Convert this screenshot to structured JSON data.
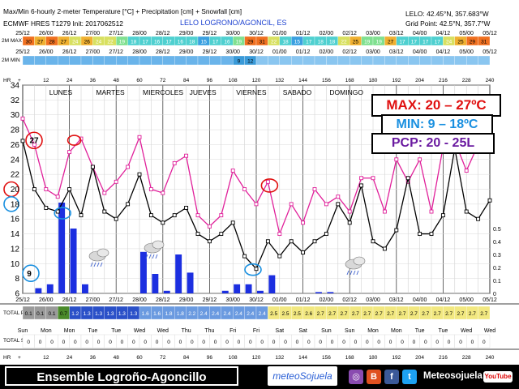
{
  "header": {
    "title": "Max/Min 6-hourly 2-meter Temperature [°C] + Precipitation [cm] + Snowfall [cm]",
    "model": "ECMWF HRES T1279 Init: 2017062512",
    "location": "LELO LOGRONO/AGONCIL, ES",
    "station": "LELO: 42.45°N, 357.683°W",
    "grid": "Grid Point: 42.5°N, 357.7°W"
  },
  "row_labels": {
    "tmax": "2M MAX",
    "tmin": "2M MIN",
    "hr": "HR",
    "precip": "TOTAL PRECP",
    "snow": "TOTAL SNOW"
  },
  "top_dates": [
    "25/12",
    "26/00",
    "26/12",
    "27/00",
    "27/12",
    "28/00",
    "28/12",
    "29/00",
    "29/12",
    "30/00",
    "30/12",
    "01/00",
    "01/12",
    "02/00",
    "02/12",
    "03/00",
    "03/12",
    "04/00",
    "04/12",
    "05/00",
    "05/12"
  ],
  "max_strip": [
    30,
    27,
    28,
    27,
    24,
    26,
    24,
    22,
    19,
    18,
    17,
    16,
    17,
    16,
    18,
    15,
    17,
    16,
    19,
    29,
    31,
    22,
    18,
    15,
    17,
    18,
    18,
    22,
    25,
    19,
    19,
    27,
    17,
    17,
    17,
    17,
    24,
    25,
    29,
    31
  ],
  "min_strip": [
    null,
    null,
    null,
    null,
    null,
    null,
    null,
    null,
    null,
    null,
    null,
    null,
    null,
    null,
    null,
    null,
    null,
    null,
    "9",
    "12",
    null,
    null,
    null,
    null,
    null,
    null,
    null,
    null,
    null,
    null,
    null,
    null,
    null,
    null,
    null,
    null,
    null,
    null,
    null,
    null
  ],
  "hour_marks": [
    "12",
    "24",
    "36",
    "48",
    "60",
    "72",
    "84",
    "96",
    "108",
    "120",
    "132",
    "144",
    "156",
    "168",
    "180",
    "192",
    "204",
    "216",
    "228",
    "240"
  ],
  "hr_prefix": "+",
  "day_labels": [
    "LUNES",
    "MARTES",
    "MIERCOLES",
    "JUEVES",
    "VIERNES",
    "SABADO",
    "DOMINGO"
  ],
  "annotations": {
    "max": "MAX: 20 – 27ºC",
    "min": "MIN: 9 – 18ºC",
    "pcp": "PCP: 20 - 25L",
    "c27": "27",
    "c20": "20",
    "c18": "18",
    "c9": "9"
  },
  "precip_totals": [
    "0.1",
    "0.1",
    "0.1",
    "0.7",
    "1.2",
    "1.3",
    "1.3",
    "1.3",
    "1.3",
    "1.3",
    "1.6",
    "1.6",
    "1.8",
    "1.8",
    "2.2",
    "2.4",
    "2.4",
    "2.4",
    "2.4",
    "2.4",
    "2.4",
    "2.5",
    "2.5",
    "2.5",
    "2.6",
    "2.7",
    "2.7",
    "2.7",
    "2.7",
    "2.7",
    "2.7",
    "2.7",
    "2.7",
    "2.7",
    "2.7",
    "2.7",
    "2.7",
    "2.7",
    "2.7",
    "2.7"
  ],
  "snow_totals": [
    "0",
    "0",
    "0",
    "0",
    "0",
    "0",
    "0",
    "0",
    "0",
    "0",
    "0",
    "0",
    "0",
    "0",
    "0",
    "0",
    "0",
    "0",
    "0",
    "0",
    "0",
    "0",
    "0",
    "0",
    "0",
    "0",
    "0",
    "0",
    "0",
    "0",
    "0",
    "0",
    "0",
    "0",
    "0",
    "0",
    "0",
    "0",
    "0",
    "0"
  ],
  "weekdays": [
    "Sun",
    "Mon",
    "Mon",
    "Tue",
    "Tue",
    "Wed",
    "Wed",
    "Thu",
    "Thu",
    "Fri",
    "Fri",
    "Sat",
    "Sat",
    "Sun",
    "Sun",
    "Mon",
    "Mon",
    "Tue",
    "Tue",
    "Wed",
    "Wed"
  ],
  "footer": {
    "banner": "Ensemble Logroño-Agoncillo",
    "brand": "meteoSojuela",
    "handle": "Meteosojuela",
    "youtube": "YouTube"
  },
  "colors": {
    "tmax_line": "#e0209a",
    "tmin_line": "#000000",
    "precip_bar": "#1c2fe0",
    "max_text": "#e01010",
    "min_text": "#1a90e0",
    "pcp_text": "#6a1aa0",
    "circle_red": "#e01010",
    "circle_blue": "#1a90e0"
  },
  "chart_data": {
    "type": "line",
    "x_hours": [
      0,
      6,
      12,
      18,
      24,
      30,
      36,
      42,
      48,
      54,
      60,
      66,
      72,
      78,
      84,
      90,
      96,
      102,
      108,
      114,
      120,
      126,
      132,
      138,
      144,
      150,
      156,
      162,
      168,
      174,
      180,
      186,
      192,
      198,
      204,
      210,
      216,
      222,
      228,
      234,
      240
    ],
    "series": [
      {
        "axis": "temperature",
        "values": [
          29.5,
          26,
          20,
          19,
          25,
          26.8,
          23,
          19.5,
          21,
          23,
          27,
          20,
          19.5,
          23.5,
          24.5,
          16.5,
          15,
          16.5,
          22.5,
          20,
          18,
          21,
          14,
          18,
          15.5,
          20,
          18,
          19,
          17,
          21.5,
          21.5,
          17,
          24,
          21,
          24,
          17,
          25.7,
          26.5,
          22.5,
          26,
          25.5
        ]
      },
      {
        "axis": "temperature",
        "values": [
          26.5,
          20,
          17.5,
          17,
          20,
          16.5,
          23,
          17,
          16,
          18,
          22,
          16.5,
          15.5,
          16.5,
          17.5,
          14,
          13,
          14,
          15.5,
          11,
          9.3,
          13,
          11,
          13,
          11.5,
          13,
          14,
          18,
          15.5,
          20.5,
          13,
          12,
          14.5,
          21.5,
          14,
          14,
          16.5,
          25.5,
          17,
          16,
          18.5
        ]
      },
      {
        "axis": "precipitation",
        "x": [
          0,
          6,
          12,
          18,
          24,
          30,
          36,
          42,
          48,
          54,
          60,
          66,
          72,
          78,
          84,
          90,
          96,
          102,
          108,
          114,
          120,
          126,
          132,
          138,
          144,
          150,
          156,
          162,
          168,
          174,
          180,
          186,
          192,
          198,
          204,
          210,
          216,
          222,
          228,
          234,
          240
        ],
        "values": [
          0,
          0.04,
          0.07,
          0.7,
          0.5,
          0.07,
          0,
          0,
          0,
          0,
          0.32,
          0.15,
          0.02,
          0.3,
          0.16,
          0,
          0,
          0.02,
          0.07,
          0.07,
          0.02,
          0.14,
          0,
          0,
          0,
          0.01,
          0.01,
          0,
          0,
          0,
          0,
          0,
          0,
          0,
          0,
          0,
          0,
          0,
          0,
          0,
          0
        ]
      }
    ],
    "ylim_temperature": [
      6,
      34
    ],
    "yticks_temperature": [
      6,
      8,
      10,
      12,
      14,
      16,
      18,
      20,
      22,
      24,
      26,
      28,
      30,
      32,
      34
    ],
    "ylim_precipitation": [
      0,
      0.7
    ],
    "yticks_precipitation": [
      "0",
      "0.1",
      "0.2",
      "0.3",
      "0.4",
      "0.5"
    ],
    "xlim": [
      0,
      240
    ],
    "grid": true
  }
}
